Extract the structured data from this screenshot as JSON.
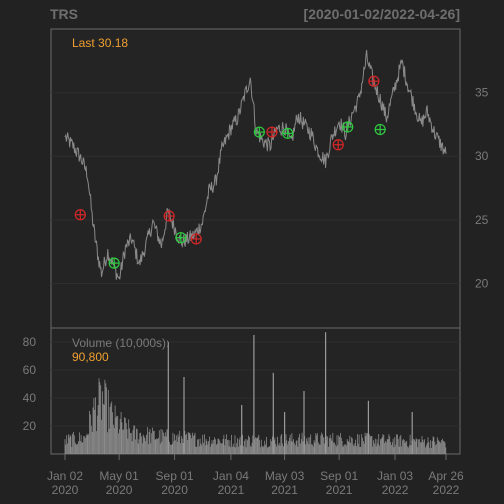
{
  "chart_data": [
    {
      "type": "line",
      "ticker": "TRS",
      "date_range": "[2020-01-02/2022-04-26]",
      "last_label": "Last 30.18",
      "ylim": [
        16.5,
        40
      ],
      "y_ticks": [
        20,
        25,
        30,
        35
      ],
      "x_ticks": [
        {
          "date": "2020-01-02",
          "line1": "Jan 02",
          "line2": "2020"
        },
        {
          "date": "2020-05-01",
          "line1": "May 01",
          "line2": "2020"
        },
        {
          "date": "2020-09-01",
          "line1": "Sep 01",
          "line2": "2020"
        },
        {
          "date": "2021-01-04",
          "line1": "Jan 04",
          "line2": "2021"
        },
        {
          "date": "2021-05-03",
          "line1": "May 03",
          "line2": "2021"
        },
        {
          "date": "2021-09-01",
          "line1": "Sep 01",
          "line2": "2021"
        },
        {
          "date": "2022-01-03",
          "line1": "Jan 03",
          "line2": "2022"
        },
        {
          "date": "2022-04-26",
          "line1": "Apr 26",
          "line2": "2022"
        }
      ],
      "x": [
        "2020-01-02",
        "2020-01-20",
        "2020-02-07",
        "2020-02-21",
        "2020-03-02",
        "2020-03-09",
        "2020-03-16",
        "2020-03-23",
        "2020-04-06",
        "2020-04-20",
        "2020-05-01",
        "2020-05-15",
        "2020-05-29",
        "2020-06-15",
        "2020-07-01",
        "2020-07-15",
        "2020-08-03",
        "2020-08-17",
        "2020-09-01",
        "2020-09-15",
        "2020-10-01",
        "2020-10-15",
        "2020-11-02",
        "2020-11-16",
        "2020-12-01",
        "2020-12-15",
        "2021-01-04",
        "2021-01-19",
        "2021-02-01",
        "2021-02-16",
        "2021-03-01",
        "2021-03-15",
        "2021-04-01",
        "2021-04-15",
        "2021-05-03",
        "2021-05-17",
        "2021-06-01",
        "2021-06-15",
        "2021-07-01",
        "2021-07-15",
        "2021-08-02",
        "2021-08-16",
        "2021-09-01",
        "2021-09-15",
        "2021-10-01",
        "2021-10-15",
        "2021-11-01",
        "2021-11-15",
        "2021-12-01",
        "2021-12-15",
        "2022-01-03",
        "2022-01-18",
        "2022-02-01",
        "2022-02-15",
        "2022-03-01",
        "2022-03-15",
        "2022-04-01",
        "2022-04-26"
      ],
      "values": [
        31.5,
        30.8,
        29.8,
        28.6,
        25.3,
        23.5,
        22.0,
        20.8,
        22.5,
        21.3,
        20.3,
        22.8,
        23.5,
        21.5,
        23.2,
        24.8,
        23.0,
        25.6,
        24.4,
        23.2,
        23.5,
        23.8,
        24.8,
        27.2,
        28.0,
        30.5,
        32.2,
        33.0,
        34.5,
        36.2,
        32.0,
        31.2,
        30.8,
        32.1,
        32.3,
        31.0,
        33.2,
        32.5,
        31.8,
        30.5,
        29.6,
        31.5,
        32.8,
        31.8,
        33.4,
        34.5,
        37.8,
        36.0,
        34.5,
        33.0,
        35.5,
        37.4,
        35.5,
        34.0,
        32.5,
        33.5,
        31.8,
        30.18
      ],
      "buy_signals": [
        {
          "date": "2020-04-20",
          "value": 21.6
        },
        {
          "date": "2020-09-15",
          "value": 23.6
        },
        {
          "date": "2021-03-08",
          "value": 31.9
        },
        {
          "date": "2021-05-10",
          "value": 31.8
        },
        {
          "date": "2021-09-20",
          "value": 32.3
        },
        {
          "date": "2021-12-01",
          "value": 32.1
        }
      ],
      "sell_signals": [
        {
          "date": "2020-02-05",
          "value": 25.4
        },
        {
          "date": "2020-08-20",
          "value": 25.3
        },
        {
          "date": "2020-10-19",
          "value": 23.5
        },
        {
          "date": "2021-04-05",
          "value": 31.9
        },
        {
          "date": "2021-08-30",
          "value": 30.9
        },
        {
          "date": "2021-11-17",
          "value": 35.9
        }
      ],
      "colors": {
        "price": "#8a8a8a",
        "buy": "#2ecc40",
        "sell": "#d62728",
        "accent": "#f0a030"
      }
    },
    {
      "type": "bar",
      "volume_label": "Volume (10,000s):",
      "volume_last": "90,800",
      "ylim": [
        0,
        90
      ],
      "y_ticks": [
        20,
        40,
        60,
        80
      ],
      "profile": [
        {
          "date": "2020-01-02",
          "value": 10
        },
        {
          "date": "2020-02-15",
          "value": 12
        },
        {
          "date": "2020-03-10",
          "value": 35
        },
        {
          "date": "2020-03-25",
          "value": 40
        },
        {
          "date": "2020-04-20",
          "value": 25
        },
        {
          "date": "2020-06-01",
          "value": 15
        },
        {
          "date": "2020-09-01",
          "value": 12
        },
        {
          "date": "2021-01-04",
          "value": 10
        },
        {
          "date": "2021-09-01",
          "value": 11
        },
        {
          "date": "2022-04-26",
          "value": 9
        }
      ],
      "spikes": [
        {
          "date": "2020-08-18",
          "value": 80
        },
        {
          "date": "2020-09-22",
          "value": 55
        },
        {
          "date": "2021-01-28",
          "value": 35
        },
        {
          "date": "2021-02-24",
          "value": 85
        },
        {
          "date": "2021-04-08",
          "value": 58
        },
        {
          "date": "2021-05-03",
          "value": 30
        },
        {
          "date": "2021-06-15",
          "value": 45
        },
        {
          "date": "2021-08-02",
          "value": 87
        },
        {
          "date": "2021-11-05",
          "value": 38
        },
        {
          "date": "2022-02-10",
          "value": 30
        }
      ],
      "colors": {
        "bar": "#8c8c8c"
      }
    }
  ]
}
